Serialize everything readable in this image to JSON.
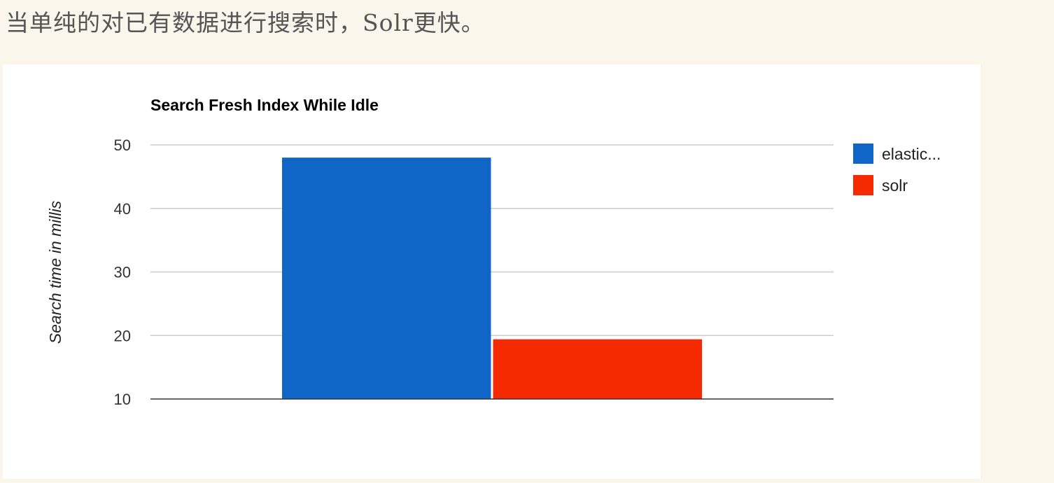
{
  "caption": "当单纯的对已有数据进行搜索时，Solr更快。",
  "chart_data": {
    "type": "bar",
    "title": "Search Fresh Index While Idle",
    "xlabel": "",
    "ylabel": "Search time in millis",
    "categories": [
      ""
    ],
    "series": [
      {
        "name": "elastic...",
        "color": "#0f66c6",
        "values": [
          48
        ]
      },
      {
        "name": "solr",
        "color": "#f52a00",
        "values": [
          19.4
        ]
      }
    ],
    "ylim": [
      10,
      50
    ],
    "yticks": [
      "10",
      "20",
      "30",
      "40",
      "50"
    ],
    "grid": true,
    "legend": "right"
  }
}
